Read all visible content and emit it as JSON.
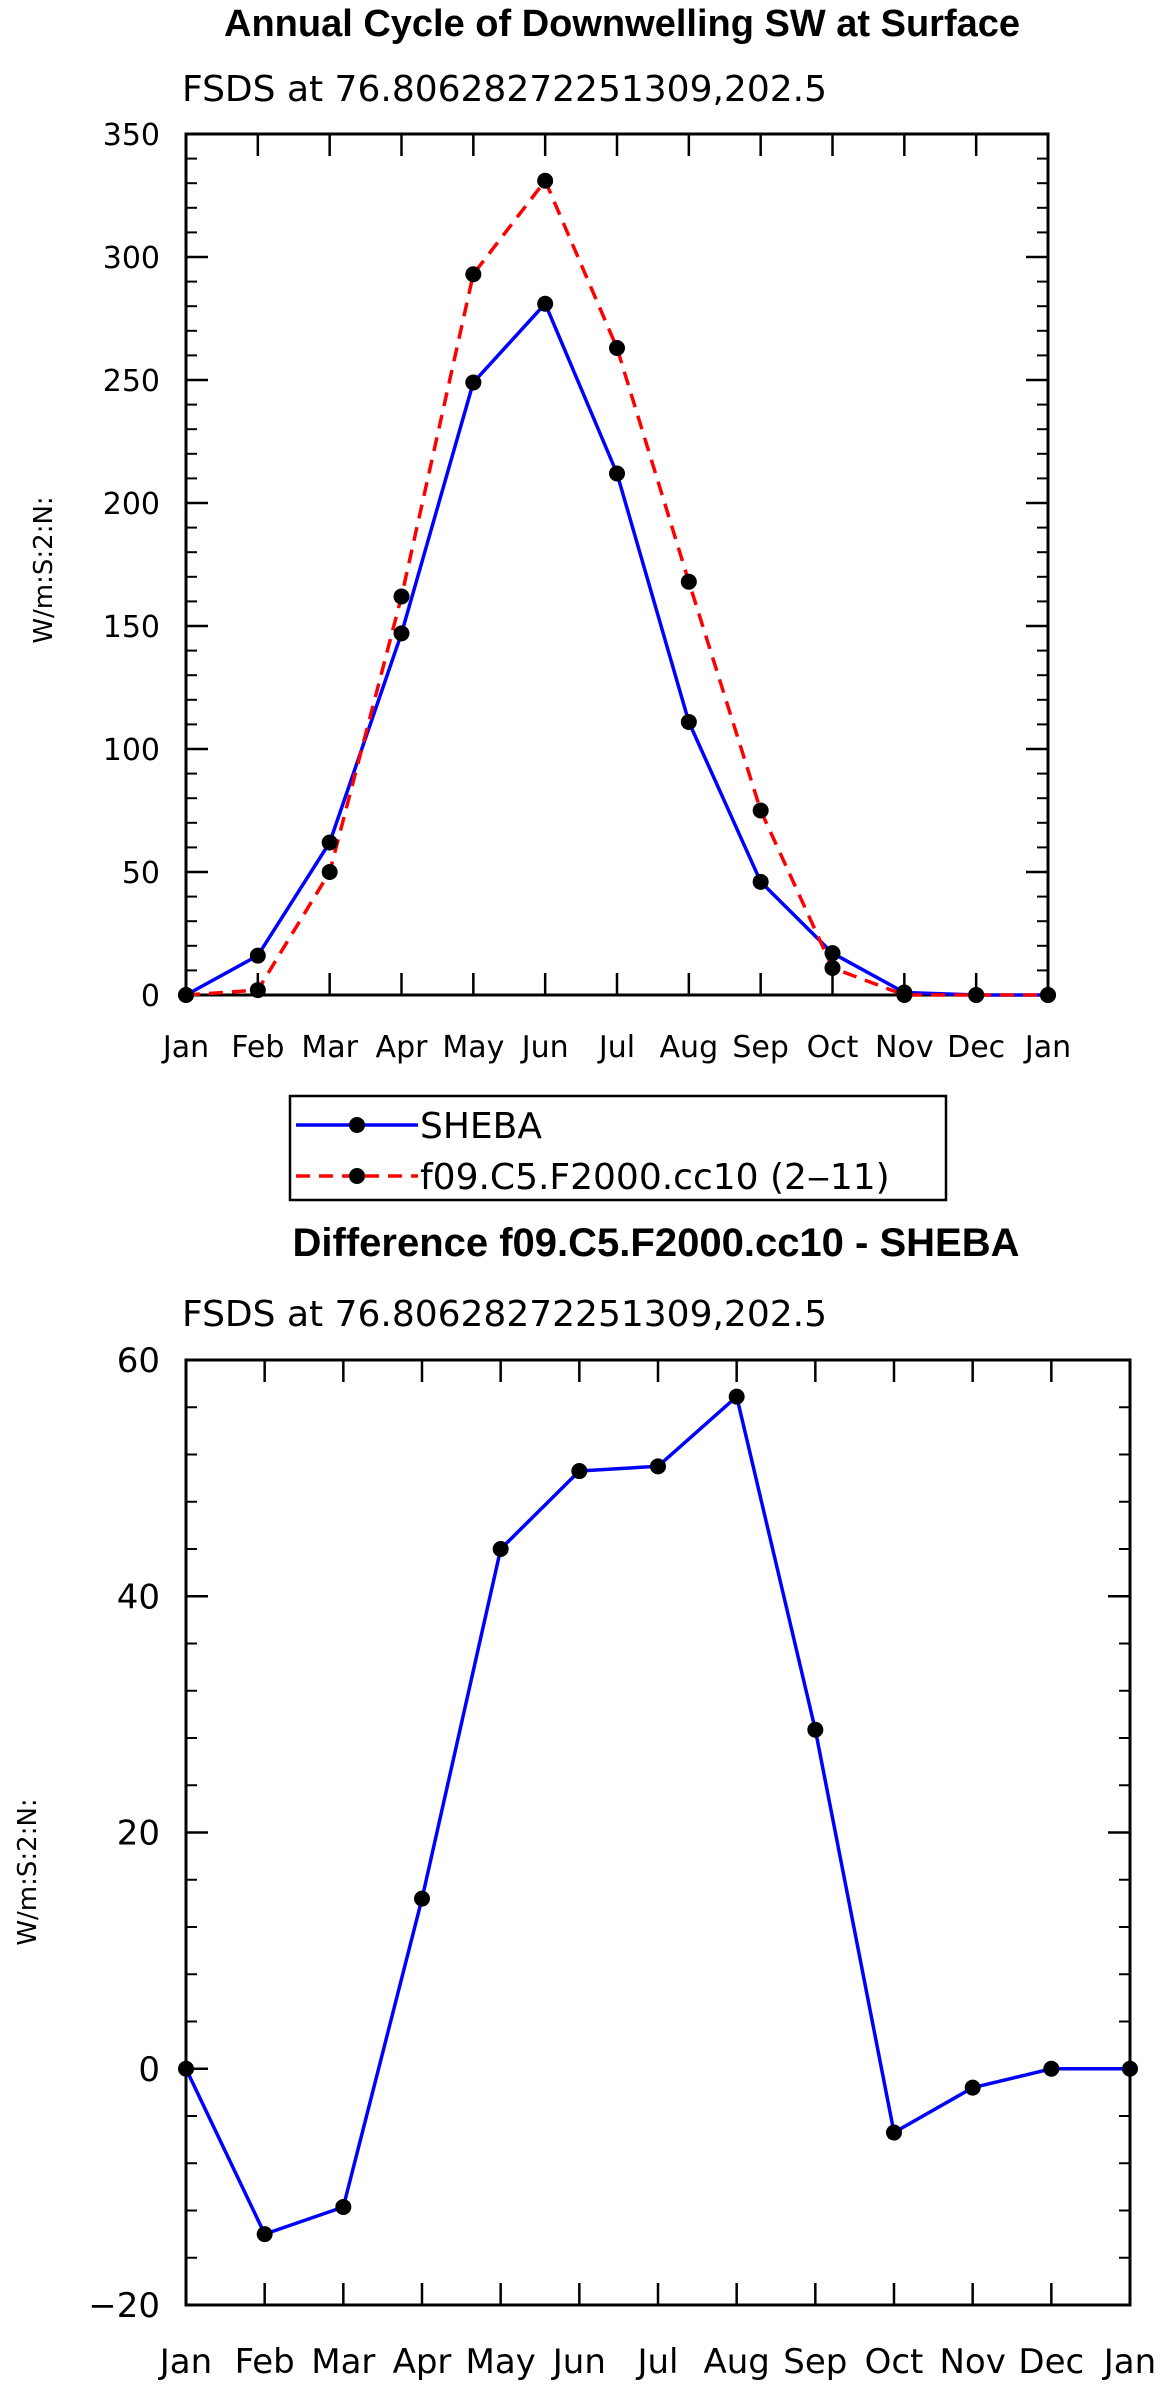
{
  "chart_data": [
    {
      "type": "line",
      "title": "Annual Cycle of Downwelling SW at Surface",
      "subtitle": "FSDS at 76.80628272251309,202.5",
      "ylabel": "W/m:S:2:N:",
      "xlabel": "",
      "categories": [
        "Jan",
        "Feb",
        "Mar",
        "Apr",
        "May",
        "Jun",
        "Jul",
        "Aug",
        "Sep",
        "Oct",
        "Nov",
        "Dec",
        "Jan"
      ],
      "ylim": [
        0,
        350
      ],
      "yticks": [
        0,
        50,
        100,
        150,
        200,
        250,
        300,
        350
      ],
      "ytick_labels": [
        "0",
        "50",
        "100",
        "150",
        "200",
        "250",
        "300",
        "350"
      ],
      "y_minor_step": 10,
      "legend_position": "bottom",
      "series": [
        {
          "name": "SHEBA",
          "color": "#0000ff",
          "style": "solid",
          "values": [
            0,
            16,
            62,
            147,
            249,
            281,
            212,
            111,
            46,
            17,
            1,
            0,
            0
          ]
        },
        {
          "name": "f09.C5.F2000.cc10 (2‒11)",
          "color": "#ff0000",
          "style": "dashed",
          "values": [
            0,
            2,
            50,
            162,
            293,
            331,
            263,
            168,
            75,
            11,
            0,
            0,
            0
          ]
        }
      ]
    },
    {
      "type": "line",
      "title": "Difference f09.C5.F2000.cc10 - SHEBA",
      "subtitle": "FSDS at 76.80628272251309,202.5",
      "ylabel": "W/m:S:2:N:",
      "xlabel": "",
      "categories": [
        "Jan",
        "Feb",
        "Mar",
        "Apr",
        "May",
        "Jun",
        "Jul",
        "Aug",
        "Sep",
        "Oct",
        "Nov",
        "Dec",
        "Jan"
      ],
      "ylim": [
        -20,
        60
      ],
      "yticks": [
        -20,
        0,
        20,
        40,
        60
      ],
      "ytick_labels": [
        "−20",
        "0",
        "20",
        "40",
        "60"
      ],
      "y_minor_step": 4,
      "series": [
        {
          "name": "Difference",
          "color": "#0000ff",
          "style": "solid",
          "values": [
            0,
            -14,
            -11.7,
            14.4,
            44,
            50.6,
            51,
            56.9,
            28.7,
            -5.4,
            -1.6,
            0,
            0
          ]
        }
      ]
    }
  ],
  "colors": {
    "blue": "#0000ff",
    "red": "#ff0000",
    "marker": "#000000",
    "axis": "#000000"
  }
}
